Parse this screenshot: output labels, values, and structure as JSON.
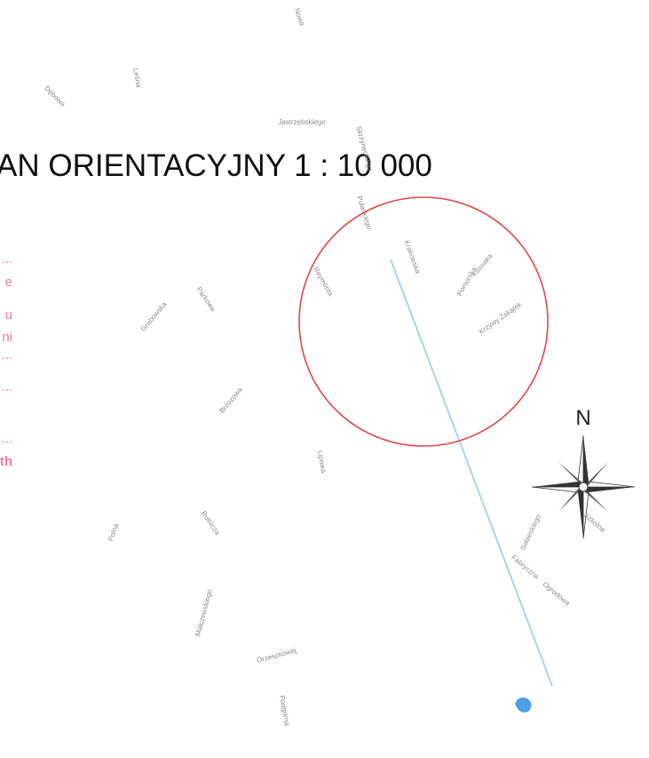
{
  "title": "AN ORIENTACYJNY 1 : 10 000",
  "compass": {
    "label": "N"
  },
  "legend_fragments": [
    "...",
    "e",
    "u",
    "ni",
    "...",
    "...",
    "...",
    "th"
  ],
  "streets": [
    {
      "label": "Nowa"
    },
    {
      "label": "Leśna"
    },
    {
      "label": "Dębowa"
    },
    {
      "label": "Jastrzębskiego"
    },
    {
      "label": "Skrzyneckiego"
    },
    {
      "label": "Pułaskiego"
    },
    {
      "label": "Krakowska"
    },
    {
      "label": "Pomorska"
    },
    {
      "label": "Reymonta"
    },
    {
      "label": "Kossaka"
    },
    {
      "label": "Krzywy Zakątek"
    },
    {
      "label": "Parkowa"
    },
    {
      "label": "Grabowska"
    },
    {
      "label": "Brzozowa"
    },
    {
      "label": "Lipowa"
    },
    {
      "label": "Rolnicza"
    },
    {
      "label": "Polna"
    },
    {
      "label": "Malczewskiego"
    },
    {
      "label": "Orzeszkowej"
    },
    {
      "label": "Podgórna"
    },
    {
      "label": "Sobieskiego"
    },
    {
      "label": "Szkolna"
    },
    {
      "label": "Ogrodowa"
    },
    {
      "label": "Fabryczna"
    }
  ]
}
